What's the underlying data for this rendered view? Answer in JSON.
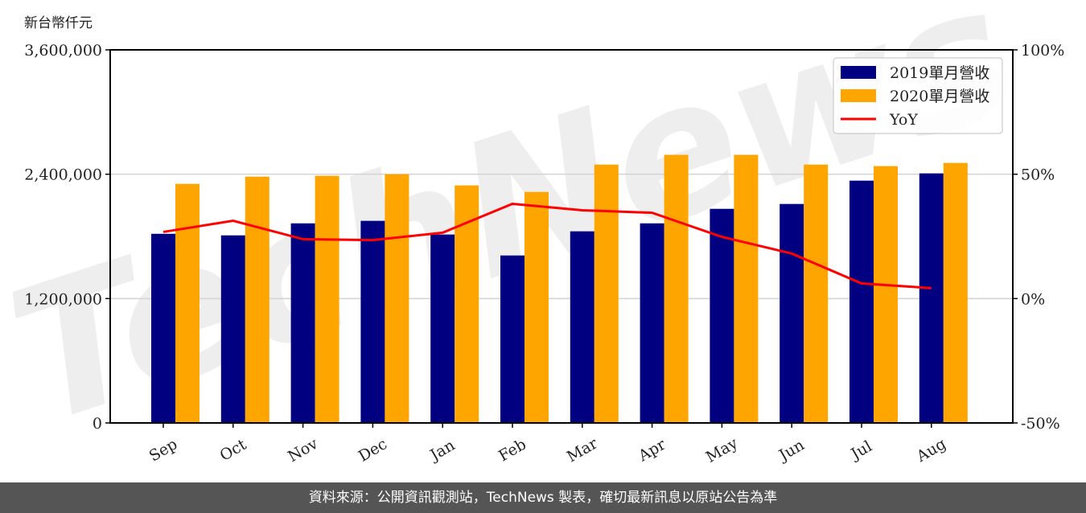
{
  "chart_data": {
    "type": "bar",
    "title": "",
    "ylabel": "新台幣仟元",
    "xlabel": "",
    "categories": [
      "Sep",
      "Oct",
      "Nov",
      "Dec",
      "Jan",
      "Feb",
      "Mar",
      "Apr",
      "May",
      "Jun",
      "Jul",
      "Aug"
    ],
    "series": [
      {
        "name": "2019單月營收",
        "type": "bar",
        "axis": "left",
        "color": "#000080",
        "values": [
          1825000,
          1810000,
          1926000,
          1950000,
          1818000,
          1616000,
          1849000,
          1926000,
          2066000,
          2113000,
          2338000,
          2408000
        ]
      },
      {
        "name": "2020單月營收",
        "type": "bar",
        "axis": "left",
        "color": "#FFA500",
        "values": [
          2307000,
          2377000,
          2385000,
          2400000,
          2292000,
          2229000,
          2493000,
          2587000,
          2587000,
          2493000,
          2478000,
          2509000
        ]
      },
      {
        "name": "YoY",
        "type": "line",
        "axis": "right",
        "color": "#FF0000",
        "unit": "%",
        "values": [
          26.8,
          31.3,
          23.9,
          23.5,
          26.5,
          38.1,
          35.5,
          34.5,
          24.8,
          18.1,
          6.1,
          4.2
        ]
      }
    ],
    "ylim": [
      0,
      3600000
    ],
    "y_ticks": [
      "0",
      "1,200,000",
      "2,400,000",
      "3,600,000"
    ],
    "y_tick_values": [
      0,
      1200000,
      2400000,
      3600000
    ],
    "y2lim": [
      -50,
      100
    ],
    "y2_ticks": [
      "-50%",
      "0%",
      "50%",
      "100%"
    ],
    "y2_tick_values": [
      -50,
      0,
      50,
      100
    ],
    "grid": "horizontal",
    "legend_position": "upper right",
    "watermark": "TechNews"
  },
  "footer": {
    "text": "資料來源：公開資訊觀測站，TechNews 製表，確切最新訊息以原站公告為準"
  }
}
